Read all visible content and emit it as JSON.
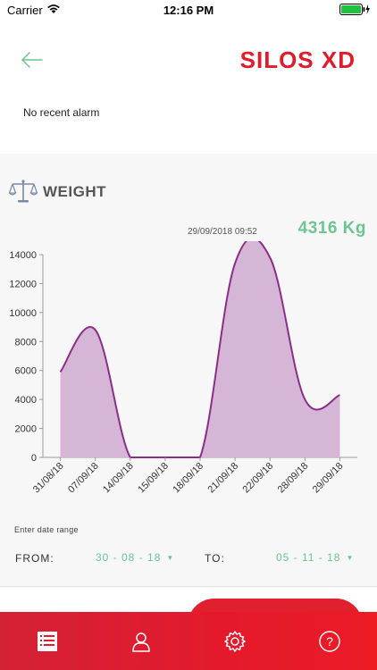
{
  "status_bar": {
    "carrier": "Carrier",
    "time": "12:16 PM"
  },
  "header": {
    "app_title": "SILOS XD",
    "alarm_text": "No recent alarm",
    "back_icon": "arrow-left-icon"
  },
  "weight": {
    "title": "WEIGHT",
    "icon": "scale-icon",
    "timestamp": "29/09/2018 09:52",
    "value": "4316 Kg",
    "accent_color": "#6ec492"
  },
  "chart_data": {
    "type": "area",
    "categories": [
      "31/08/18",
      "07/09/18",
      "14/09/18",
      "15/09/18",
      "18/09/18",
      "21/09/18",
      "22/09/18",
      "28/09/18",
      "29/09/18"
    ],
    "values": [
      5900,
      8800,
      0,
      0,
      0,
      13400,
      13800,
      4000,
      4300
    ],
    "y_ticks": [
      0,
      2000,
      4000,
      6000,
      8000,
      10000,
      12000,
      14000
    ],
    "ylim": [
      0,
      14000
    ],
    "fill_color": "#d6b6d6",
    "line_color": "#8a2f88",
    "grid": false
  },
  "date_range": {
    "label": "Enter date range",
    "from_label": "FROM:",
    "from_value": "30 - 08 - 18",
    "to_label": "TO:",
    "to_value": "05 - 11 - 18"
  },
  "tabs": [
    {
      "name": "list-icon"
    },
    {
      "name": "user-icon"
    },
    {
      "name": "gear-icon"
    },
    {
      "name": "help-icon"
    }
  ],
  "colors": {
    "brand": "#e01b2a",
    "tab_bar": "#e41a2c"
  }
}
